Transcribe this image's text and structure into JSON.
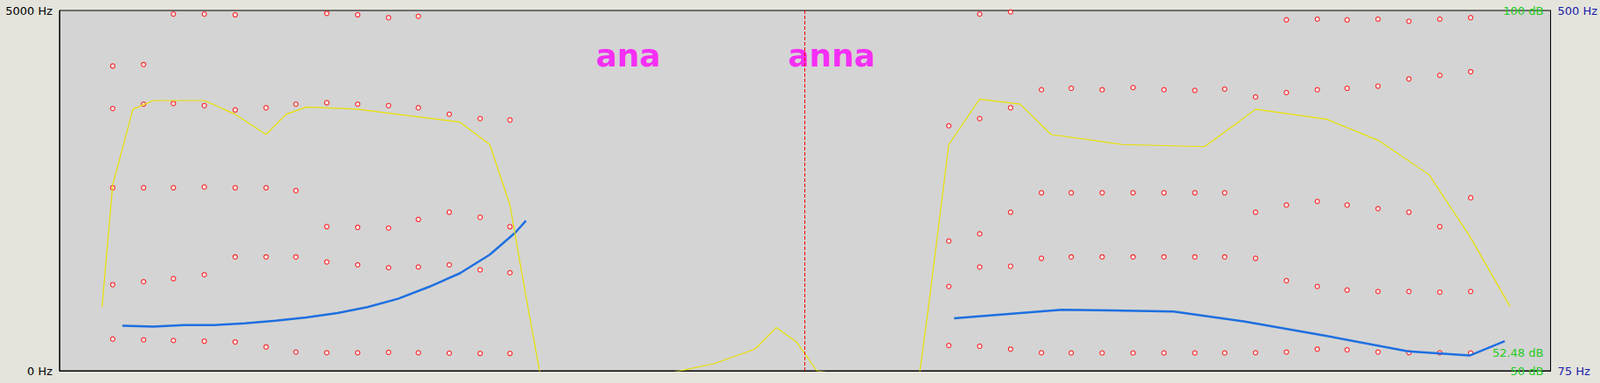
{
  "chart_data": {
    "type": "spectrogram",
    "grid": false,
    "tick_labels": "y",
    "xlim": [
      0,
      1.4
    ],
    "ylim": [
      0,
      5000
    ],
    "yticks": [
      {
        "value": 0,
        "label": "0 Hz"
      },
      {
        "value": 5000,
        "label": "5000 Hz"
      }
    ],
    "y2lim": [
      75,
      500
    ],
    "y2ticks": [
      {
        "value": 75,
        "label": "75 Hz"
      },
      {
        "value": 500,
        "label": "500 Hz"
      }
    ],
    "y3lim": [
      50,
      100
    ],
    "y3ticks": [
      {
        "value": 50,
        "label": "50 dB"
      },
      {
        "value": 52.48,
        "label": "52.48 dB"
      },
      {
        "value": 100,
        "label": "100 dB"
      }
    ],
    "cursor": 0.699,
    "annotations": [
      {
        "text": "ana",
        "x": 0.534,
        "y": 4370,
        "color": "#ff00ff"
      },
      {
        "text": "anna",
        "x": 0.725,
        "y": 4370,
        "color": "#ff00ff"
      }
    ],
    "x": [
      0.05,
      0.079,
      0.107,
      0.136,
      0.165,
      0.194,
      0.222,
      0.251,
      0.28,
      0.309,
      0.337,
      0.366,
      0.395,
      0.423,
      0.835,
      0.864,
      0.893,
      0.922,
      0.95,
      0.979,
      1.008,
      1.037,
      1.066,
      1.094,
      1.123,
      1.152,
      1.181,
      1.209,
      1.238,
      1.267,
      1.296,
      1.325
    ],
    "series": [
      {
        "type": "scatter",
        "color": "#ff0000",
        "marker": "circle",
        "values": [
          440,
          430,
          420,
          410,
          400,
          330,
          260,
          250,
          250,
          255,
          250,
          245,
          240,
          240,
          350,
          340,
          300,
          250,
          247,
          247,
          247,
          247,
          247,
          247,
          250,
          260,
          300,
          290,
          260,
          250,
          250,
          247
        ]
      },
      {
        "type": "scatter",
        "color": "#ff0000",
        "marker": "circle",
        "values": [
          1195,
          1236,
          1278,
          1333,
          1580,
          1580,
          1580,
          1510,
          1470,
          1430,
          1440,
          1470,
          1400,
          1360,
          1170,
          1440,
          1450,
          1560,
          1580,
          1580,
          1580,
          1580,
          1580,
          1580,
          1560,
          1250,
          1170,
          1120,
          1100,
          1100,
          1090,
          1100
        ]
      },
      {
        "type": "scatter",
        "color": "#ff0000",
        "marker": "circle",
        "values": [
          2540,
          2540,
          2540,
          2550,
          2540,
          2540,
          2500,
          2000,
          1990,
          1980,
          2100,
          2200,
          2130,
          2000,
          1800,
          1900,
          2200,
          2470,
          2470,
          2470,
          2470,
          2470,
          2470,
          2470,
          2200,
          2300,
          2350,
          2300,
          2250,
          2200,
          2000,
          2400
        ]
      },
      {
        "type": "scatter",
        "color": "#ff0000",
        "marker": "circle",
        "values": [
          3640,
          3700,
          3710,
          3680,
          3620,
          3650,
          3700,
          3720,
          3700,
          3680,
          3650,
          3560,
          3500,
          3480,
          3400,
          3500,
          3650,
          3900,
          3920,
          3900,
          3930,
          3900,
          3890,
          3910,
          3800,
          3860,
          3900,
          3920,
          3950,
          4050,
          4100,
          4150
        ]
      },
      {
        "type": "scatter",
        "color": "#ff0000",
        "marker": "circle",
        "values": [
          4230,
          4250,
          4950,
          4950,
          4940,
          null,
          null,
          4960,
          4940,
          4900,
          4920,
          null,
          null,
          null,
          null,
          4950,
          4980,
          null,
          null,
          null,
          null,
          null,
          null,
          null,
          null,
          4870,
          4880,
          4870,
          4880,
          4850,
          4880,
          4900
        ]
      },
      {
        "type": "line",
        "color": "#1e6fe0",
        "axis": "y2",
        "line_style": "solid",
        "x": [
          0.059,
          0.088,
          0.117,
          0.146,
          0.174,
          0.203,
          0.232,
          0.261,
          0.289,
          0.318,
          0.347,
          0.376,
          0.404,
          0.428,
          0.438,
          0.65,
          0.84,
          0.941,
          1.046,
          1.113,
          1.19,
          1.266,
          1.324,
          1.357
        ],
        "values": [
          128,
          127,
          129,
          129,
          131,
          134,
          138,
          143,
          150,
          160,
          174,
          190,
          212,
          238,
          252,
          null,
          137,
          147,
          145,
          133,
          116,
          98,
          93,
          110
        ]
      },
      {
        "type": "line",
        "color": "#e8e000",
        "axis": "y3",
        "line_style": "solid",
        "x": [
          0.04,
          0.05,
          0.069,
          0.088,
          0.136,
          0.165,
          0.194,
          0.213,
          0.232,
          0.28,
          0.328,
          0.376,
          0.404,
          0.423,
          0.438,
          0.452,
          0.471,
          0.567,
          0.615,
          0.653,
          0.673,
          0.692,
          0.711,
          0.759,
          0.807,
          0.816,
          0.835,
          0.864,
          0.902,
          0.931,
          0.998,
          1.075,
          1.104,
          1.123,
          1.19,
          1.238,
          1.286,
          1.324,
          1.362
        ],
        "values": [
          58.9,
          75.8,
          86.3,
          87.5,
          87.5,
          85.6,
          82.8,
          85.6,
          86.6,
          86.3,
          85.4,
          84.5,
          81.4,
          73.0,
          60.3,
          49.0,
          49.0,
          49.5,
          51.0,
          53.0,
          56.0,
          54.0,
          50.0,
          49.0,
          49.0,
          58.9,
          81.4,
          87.7,
          87.0,
          82.8,
          81.4,
          81.1,
          84.2,
          86.3,
          84.9,
          82.0,
          77.2,
          68.7,
          58.9
        ]
      }
    ]
  }
}
